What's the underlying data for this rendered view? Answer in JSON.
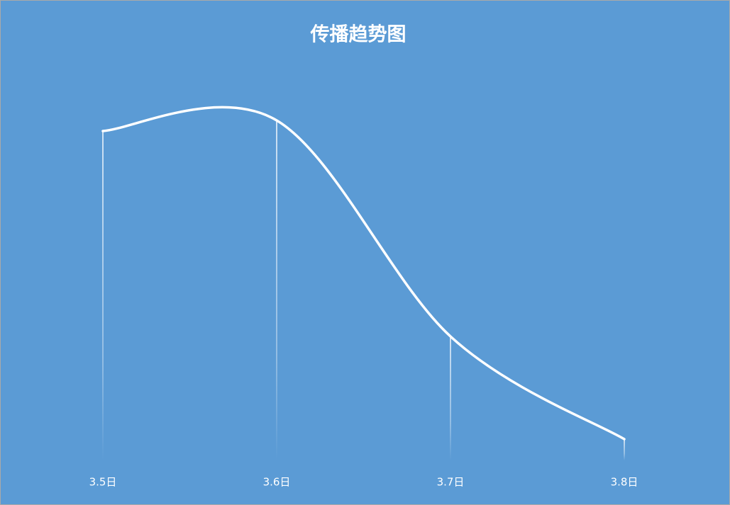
{
  "chart_data": {
    "type": "line",
    "title": "传播趋势图",
    "categories": [
      "3.5日",
      "3.6日",
      "3.7日",
      "3.8日"
    ],
    "series": [
      {
        "name": "传播",
        "color": "#ffffff",
        "values": [
          93,
          96,
          35,
          6
        ]
      }
    ],
    "ylim": [
      0,
      100
    ],
    "smooth": true,
    "drop_lines": true,
    "background": "#5b9bd5"
  }
}
